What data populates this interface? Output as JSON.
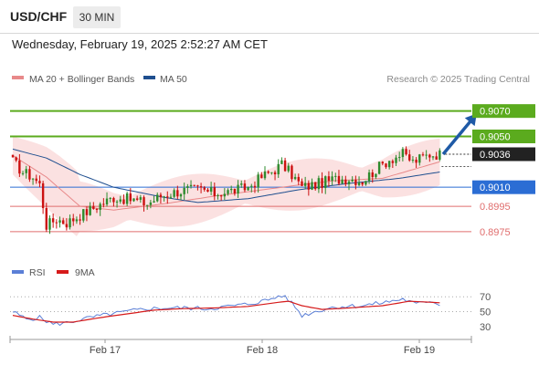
{
  "header": {
    "symbol": "USD/CHF",
    "timeframe": "30 MIN"
  },
  "datetime": "Wednesday, February 19, 2025 2:52:27 AM CET",
  "colors": {
    "up": "#2e8b2e",
    "down": "#cc1111",
    "ma20": "#e8898a",
    "ma50": "#1f4f8f",
    "resistance": "#5bab1e",
    "pivot": "#2b6dd4",
    "support": "#e06d6d",
    "rsi": "#5b7fd6",
    "rsi_ma": "#d61a1a"
  },
  "chart_data": [
    {
      "type": "candlestick",
      "legend": {
        "ma": "MA 20 + Bollinger Bands",
        "ma50": "MA 50"
      },
      "credit": "Research © 2025 Trading Central",
      "x_ticks": [
        "Feb 17",
        "Feb 18",
        "Feb 19"
      ],
      "ylim": [
        0.8962,
        0.9087
      ],
      "current_price": "0.9036",
      "levels": [
        {
          "label": "0.9070",
          "value": 0.907,
          "kind": "resistance"
        },
        {
          "label": "0.9050",
          "value": 0.905,
          "kind": "resistance"
        },
        {
          "label": "0.9010",
          "value": 0.901,
          "kind": "pivot"
        },
        {
          "label": "0.8995",
          "value": 0.8995,
          "kind": "support"
        },
        {
          "label": "0.8975",
          "value": 0.8975,
          "kind": "support"
        }
      ],
      "close_anchors": [
        [
          0,
          0.903
        ],
        [
          3,
          0.9022
        ],
        [
          6,
          0.9018
        ],
        [
          8,
          0.9012
        ],
        [
          10,
          0.898
        ],
        [
          13,
          0.8985
        ],
        [
          16,
          0.8982
        ],
        [
          20,
          0.8988
        ],
        [
          25,
          0.8995
        ],
        [
          30,
          0.9002
        ],
        [
          36,
          0.9
        ],
        [
          40,
          0.8997
        ],
        [
          44,
          0.9003
        ],
        [
          48,
          0.9006
        ],
        [
          52,
          0.9008
        ],
        [
          56,
          0.9008
        ],
        [
          60,
          0.9005
        ],
        [
          65,
          0.9007
        ],
        [
          70,
          0.901
        ],
        [
          74,
          0.9018
        ],
        [
          78,
          0.9024
        ],
        [
          80,
          0.9028
        ],
        [
          83,
          0.902
        ],
        [
          86,
          0.901
        ],
        [
          90,
          0.9012
        ],
        [
          95,
          0.9016
        ],
        [
          100,
          0.9017
        ],
        [
          104,
          0.9015
        ],
        [
          108,
          0.9024
        ],
        [
          112,
          0.9032
        ],
        [
          116,
          0.9036
        ],
        [
          119,
          0.903
        ],
        [
          124,
          0.9036
        ],
        [
          127,
          0.9036
        ]
      ],
      "ma20_anchors": [
        [
          0,
          0.9035
        ],
        [
          10,
          0.9018
        ],
        [
          20,
          0.8995
        ],
        [
          30,
          0.8992
        ],
        [
          45,
          0.8997
        ],
        [
          60,
          0.9003
        ],
        [
          80,
          0.901
        ],
        [
          95,
          0.9015
        ],
        [
          110,
          0.9017
        ],
        [
          127,
          0.903
        ]
      ],
      "ma50_anchors": [
        [
          0,
          0.904
        ],
        [
          10,
          0.9033
        ],
        [
          20,
          0.902
        ],
        [
          30,
          0.901
        ],
        [
          45,
          0.9002
        ],
        [
          55,
          0.8998
        ],
        [
          70,
          0.9001
        ],
        [
          85,
          0.9008
        ],
        [
          100,
          0.9013
        ],
        [
          115,
          0.9017
        ],
        [
          127,
          0.9022
        ]
      ],
      "arrow": {
        "from": [
          128,
          0.9036
        ],
        "to": [
          138,
          0.9068
        ]
      }
    },
    {
      "type": "line",
      "legend": {
        "rsi": "RSI",
        "ma": "9MA"
      },
      "y_ticks": [
        70,
        50,
        30
      ],
      "ylim": [
        20,
        85
      ],
      "rsi_anchors": [
        [
          0,
          50
        ],
        [
          4,
          40
        ],
        [
          8,
          42
        ],
        [
          12,
          33
        ],
        [
          16,
          35
        ],
        [
          22,
          41
        ],
        [
          28,
          46
        ],
        [
          34,
          50
        ],
        [
          40,
          54
        ],
        [
          46,
          55
        ],
        [
          52,
          55
        ],
        [
          58,
          54
        ],
        [
          64,
          57
        ],
        [
          70,
          60
        ],
        [
          76,
          66
        ],
        [
          80,
          72
        ],
        [
          83,
          62
        ],
        [
          86,
          45
        ],
        [
          90,
          50
        ],
        [
          94,
          55
        ],
        [
          98,
          57
        ],
        [
          104,
          58
        ],
        [
          110,
          62
        ],
        [
          116,
          67
        ],
        [
          120,
          60
        ],
        [
          124,
          65
        ],
        [
          127,
          60
        ]
      ],
      "ma_anchors": [
        [
          0,
          45
        ],
        [
          6,
          40
        ],
        [
          12,
          36
        ],
        [
          18,
          36
        ],
        [
          26,
          42
        ],
        [
          34,
          47
        ],
        [
          42,
          52
        ],
        [
          50,
          54
        ],
        [
          60,
          55
        ],
        [
          70,
          57
        ],
        [
          78,
          62
        ],
        [
          82,
          64
        ],
        [
          86,
          58
        ],
        [
          92,
          53
        ],
        [
          100,
          55
        ],
        [
          110,
          58
        ],
        [
          118,
          64
        ],
        [
          127,
          62
        ]
      ]
    }
  ]
}
